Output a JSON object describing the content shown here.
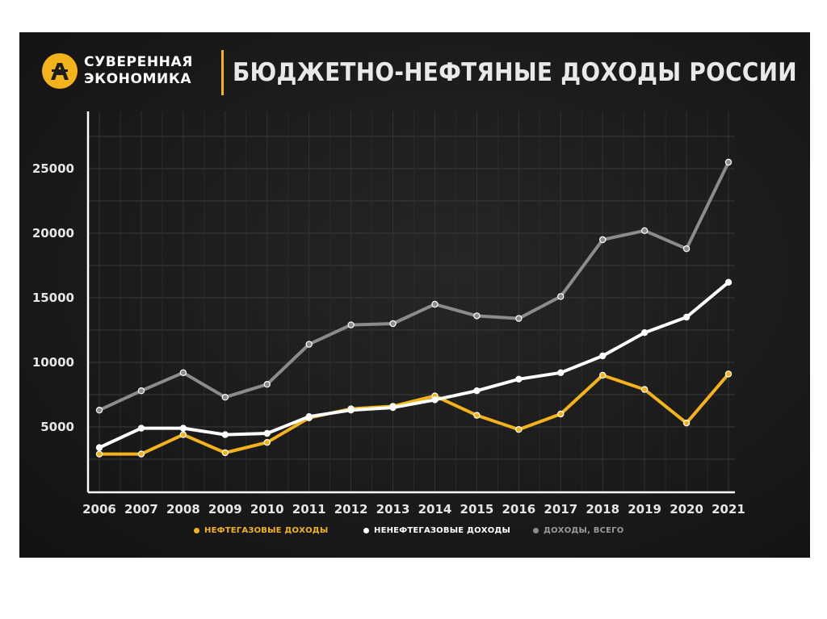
{
  "header": {
    "brand_line1": "СУВЕРЕННАЯ",
    "brand_line2": "ЭКОНОМИКА",
    "title": "БЮДЖЕТНО-НЕФТЯНЫЕ ДОХОДЫ РОССИИ"
  },
  "colors": {
    "oil_gas": "#f4b21b",
    "non_oil_gas": "#ffffff",
    "total": "#8c8c8c",
    "accent": "#f4b21b"
  },
  "chart_data": {
    "type": "line",
    "title": "БЮДЖЕТНО-НЕФТЯНЫЕ ДОХОДЫ РОССИИ",
    "xlabel": "",
    "ylabel": "",
    "categories": [
      "2006",
      "2007",
      "2008",
      "2009",
      "2010",
      "2011",
      "2012",
      "2013",
      "2014",
      "2015",
      "2016",
      "2017",
      "2018",
      "2019",
      "2020",
      "2021"
    ],
    "y_ticks": [
      5000,
      10000,
      15000,
      20000,
      25000
    ],
    "ylim": [
      0,
      27000
    ],
    "grid": true,
    "legend_position": "bottom",
    "series": [
      {
        "name": "НЕФТЕГАЗОВЫЕ ДОХОДЫ",
        "color": "#f4b21b",
        "values": [
          2900,
          2900,
          4400,
          3000,
          3800,
          5700,
          6400,
          6600,
          7400,
          5900,
          4800,
          6000,
          9000,
          7900,
          5300,
          9100
        ]
      },
      {
        "name": "НЕНЕФТЕГАЗОВЫЕ ДОХОДЫ",
        "color": "#ffffff",
        "values": [
          3400,
          4900,
          4900,
          4400,
          4500,
          5800,
          6300,
          6500,
          7100,
          7800,
          8700,
          9200,
          10500,
          12300,
          13500,
          16200
        ]
      },
      {
        "name": "ДОХОДЫ, ВСЕГО",
        "color": "#8c8c8c",
        "values": [
          6300,
          7800,
          9200,
          7300,
          8300,
          11400,
          12900,
          13000,
          14500,
          13600,
          13400,
          15100,
          19500,
          20200,
          18800,
          25500
        ]
      }
    ]
  }
}
